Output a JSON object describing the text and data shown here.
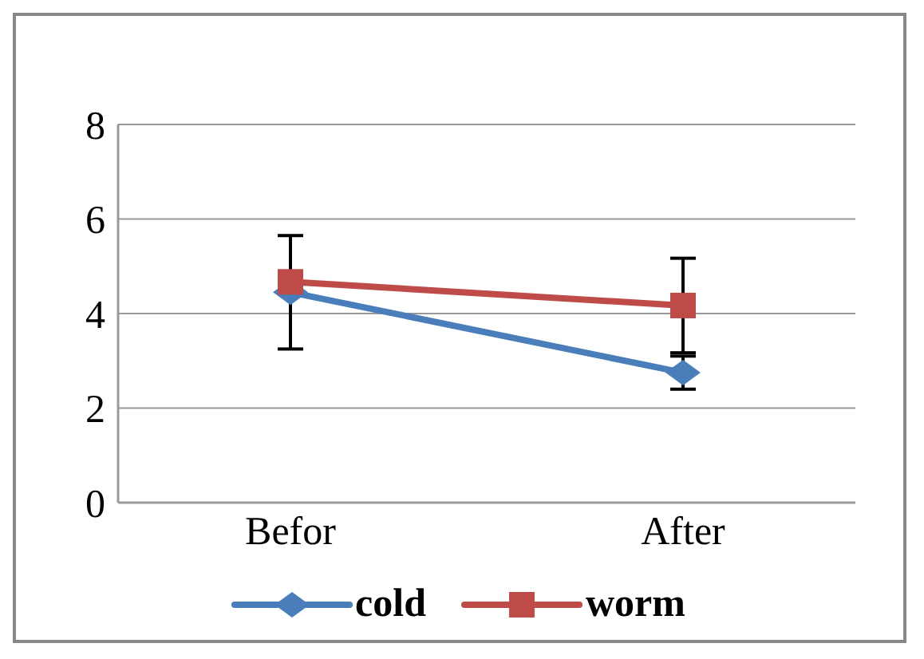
{
  "chart_data": {
    "type": "line",
    "categories": [
      "Befor",
      "After"
    ],
    "series": [
      {
        "name": "cold",
        "color": "#4a7ebb",
        "values": [
          4.45,
          2.75
        ],
        "errors": [
          1.2,
          0.35
        ],
        "marker": "diamond"
      },
      {
        "name": "worm",
        "color": "#be4b48",
        "values": [
          4.67,
          4.17
        ],
        "errors": [
          null,
          1.0
        ],
        "marker": "square"
      }
    ],
    "ylim": [
      0,
      8
    ],
    "yticks": [
      0,
      2,
      4,
      6,
      8
    ],
    "grid": "y",
    "legend": "bottom"
  }
}
